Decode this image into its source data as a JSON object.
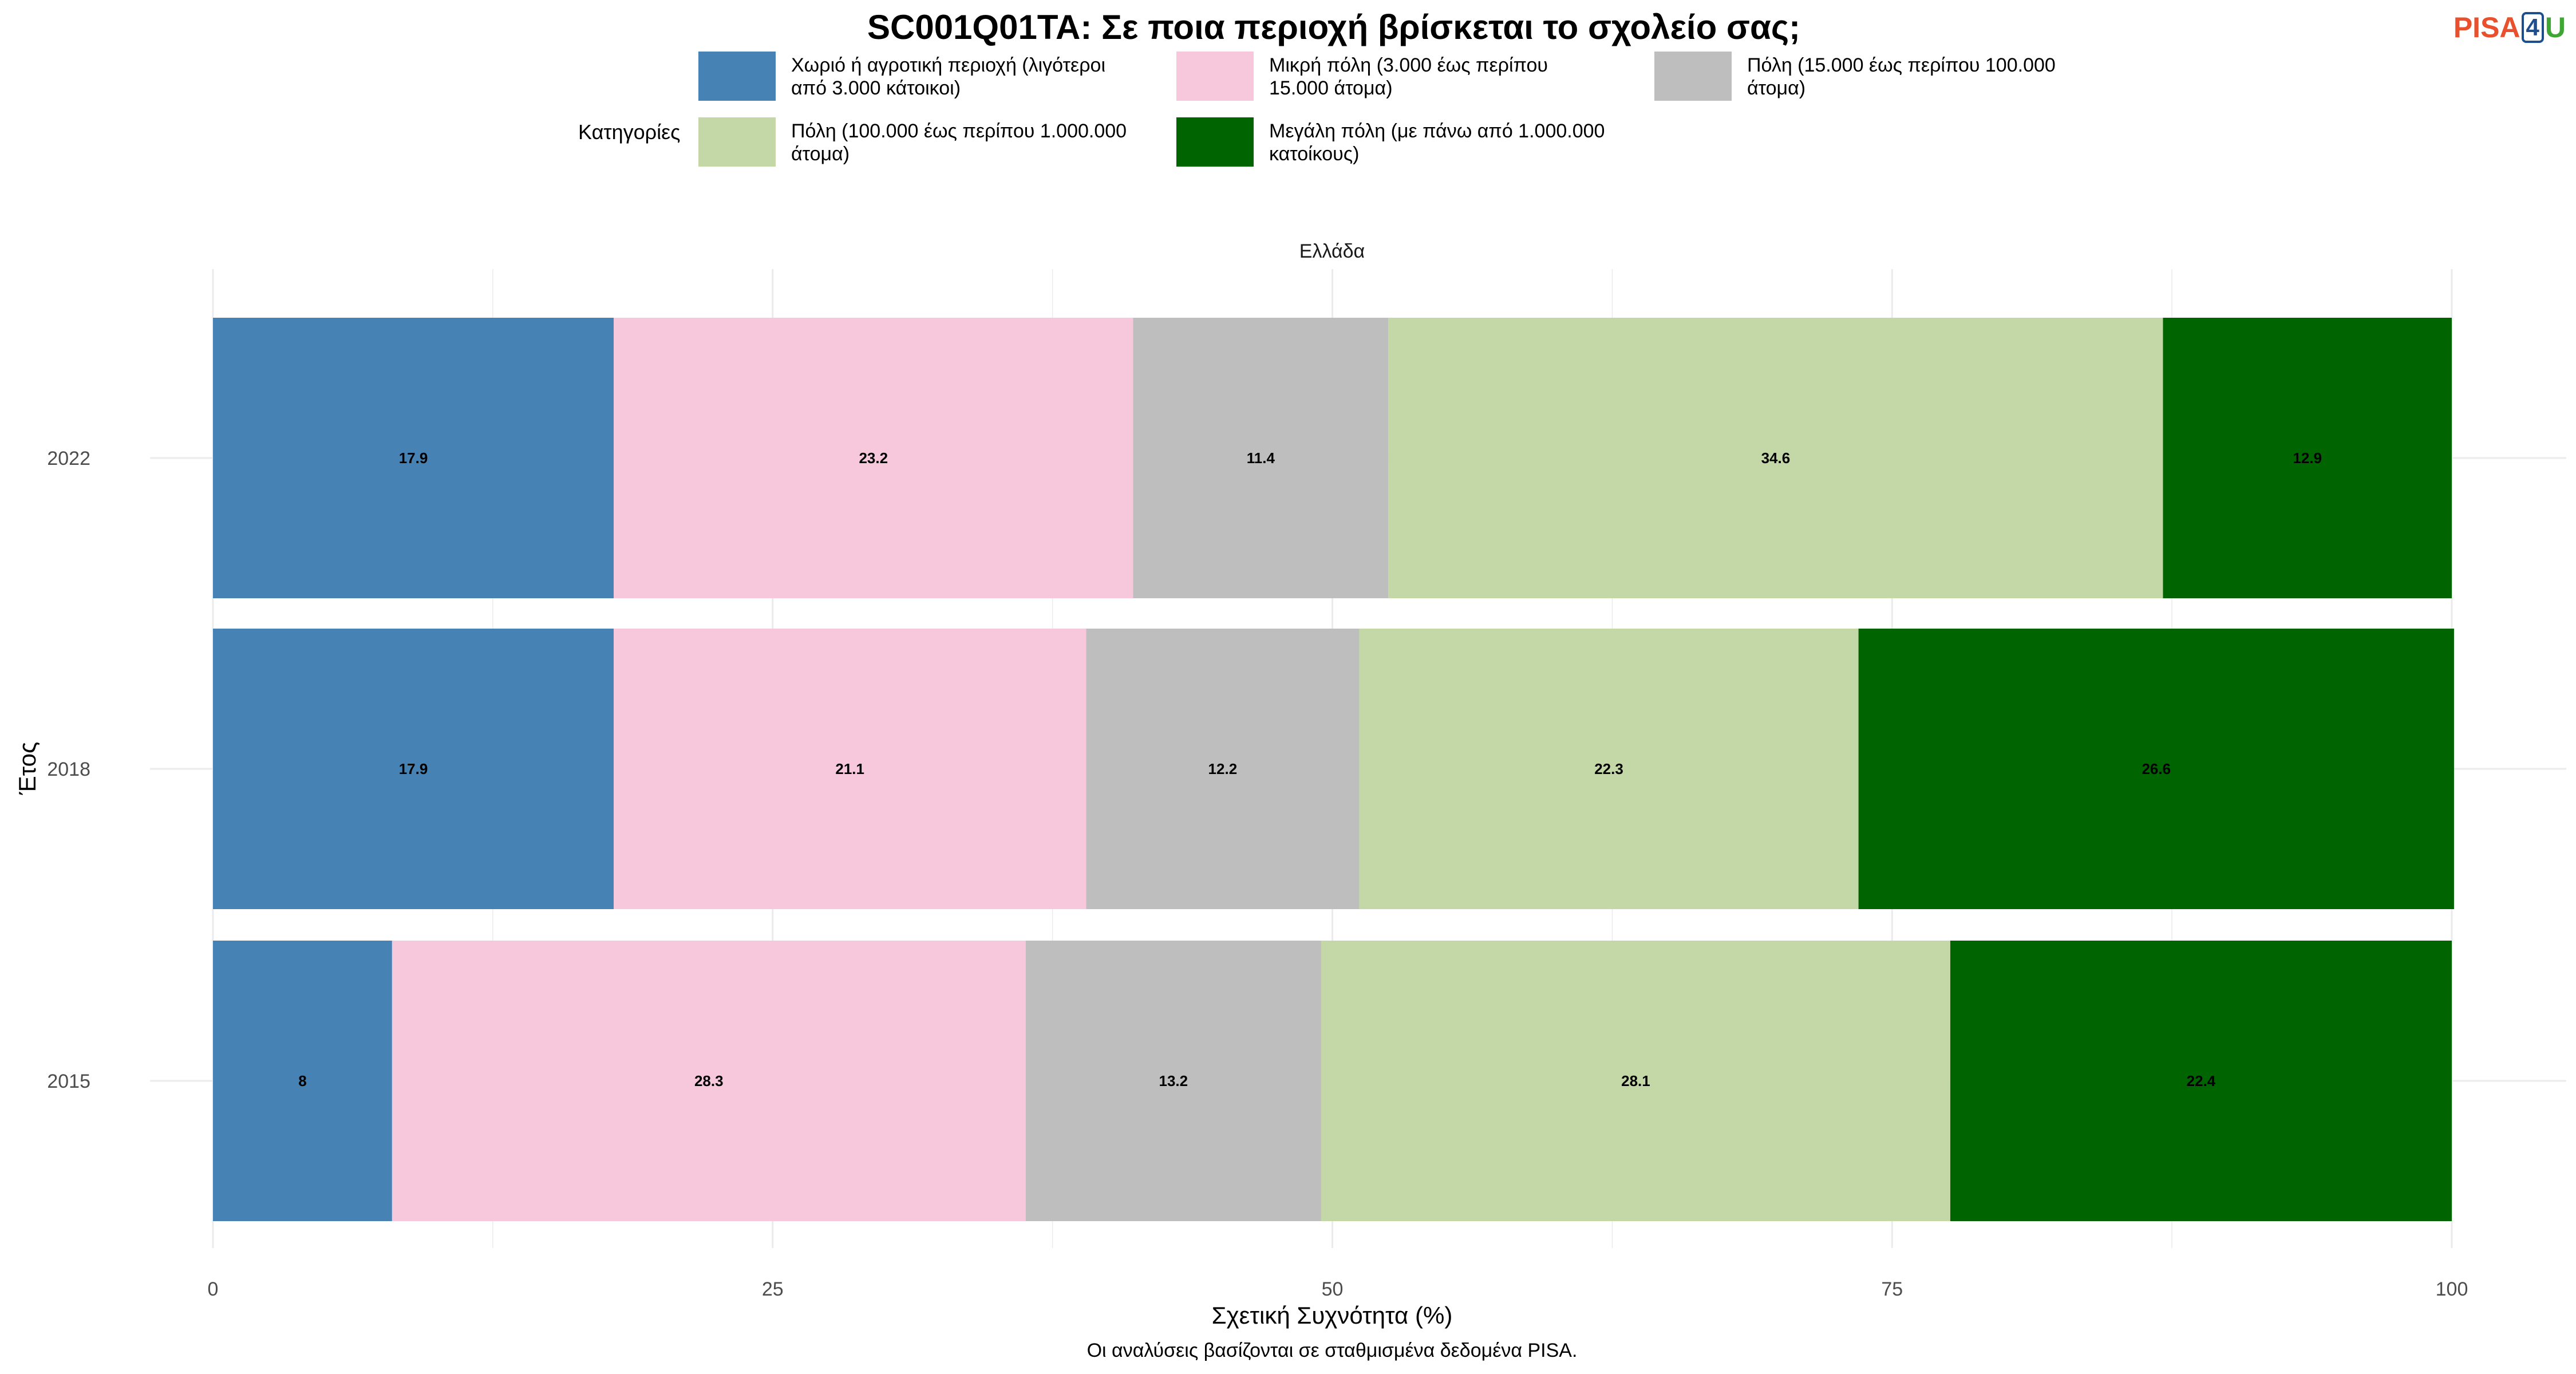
{
  "logo": {
    "part1": "PISA",
    "part2": "4",
    "part3": "U"
  },
  "chart_data": {
    "type": "bar",
    "orientation": "horizontal",
    "stacked": true,
    "title": "SC001Q01TA: Σε ποια περιοχή βρίσκεται το σχολείο σας;",
    "facet": "Ελλάδα",
    "legend_title": "Κατηγορίες",
    "legend_position": "top",
    "xlabel": "Σχετική Συχνότητα (%)",
    "ylabel": "Έτος",
    "caption": "Οι αναλύσεις βασίζονται σε σταθμισμένα δεδομένα PISA.",
    "xlim": [
      0,
      100
    ],
    "xticks": [
      0,
      25,
      50,
      75,
      100
    ],
    "grid": true,
    "categories": [
      "2022",
      "2018",
      "2015"
    ],
    "series": [
      {
        "name": "Χωριό ή αγροτική περιοχή (λιγότεροι από 3.000 κάτοικοι)",
        "legend_lines": [
          "Χωριό ή αγροτική περιοχή (λιγότεροι",
          "από 3.000 κάτοικοι)"
        ],
        "color": "#4682b4",
        "values": [
          17.9,
          17.9,
          8
        ],
        "labels": [
          "17.9",
          "17.9",
          "8"
        ]
      },
      {
        "name": "Μικρή πόλη (3.000 έως περίπου 15.000 άτομα)",
        "legend_lines": [
          "Μικρή πόλη (3.000 έως περίπου",
          "15.000 άτομα)"
        ],
        "color": "#f7c8dc",
        "values": [
          23.2,
          21.1,
          28.3
        ],
        "labels": [
          "23.2",
          "21.1",
          "28.3"
        ]
      },
      {
        "name": "Πόλη (15.000 έως περίπου 100.000 άτομα)",
        "legend_lines": [
          "Πόλη (15.000 έως περίπου 100.000",
          "άτομα)"
        ],
        "color": "#bebebe",
        "values": [
          11.4,
          12.2,
          13.2
        ],
        "labels": [
          "11.4",
          "12.2",
          "13.2"
        ]
      },
      {
        "name": "Πόλη (100.000 έως περίπου 1.000.000 άτομα)",
        "legend_lines": [
          "Πόλη (100.000 έως περίπου 1.000.000",
          "άτομα)"
        ],
        "color": "#c3d8a6",
        "values": [
          34.6,
          22.3,
          28.1
        ],
        "labels": [
          "34.6",
          "22.3",
          "28.1"
        ]
      },
      {
        "name": "Μεγάλη πόλη (με πάνω από 1.000.000 κατοίκους)",
        "legend_lines": [
          "Μεγάλη πόλη (με πάνω από 1.000.000",
          "κατοίκους)"
        ],
        "color": "#006400",
        "values": [
          12.9,
          26.6,
          22.4
        ],
        "labels": [
          "12.9",
          "26.6",
          "22.4"
        ]
      }
    ]
  }
}
